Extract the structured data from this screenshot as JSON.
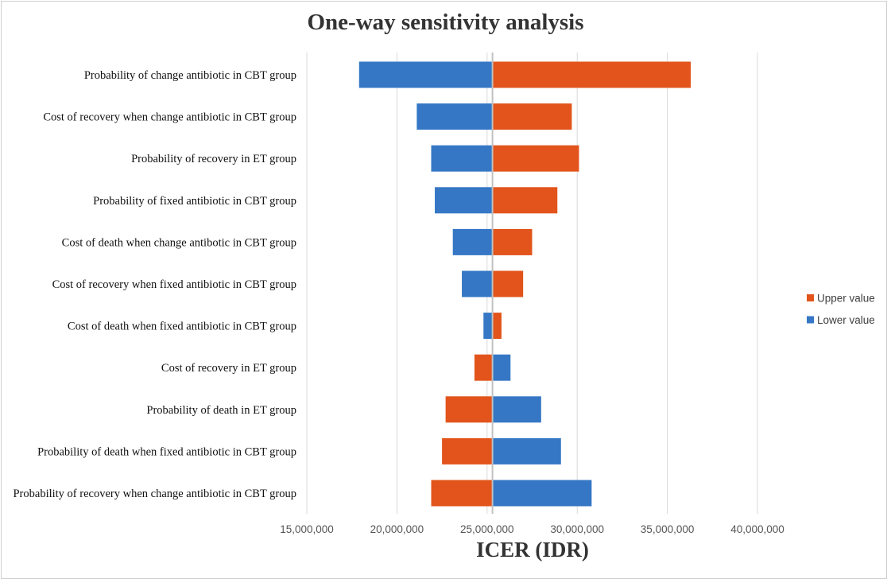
{
  "chart_data": {
    "type": "bar",
    "orientation": "horizontal",
    "subtype": "tornado",
    "title": "One-way sensitivity analysis",
    "xlabel": "ICER (IDR)",
    "ylabel": "",
    "base_value": 25300000,
    "xlim": [
      15000000,
      40000000
    ],
    "xticks": [
      15000000,
      20000000,
      25000000,
      30000000,
      35000000,
      40000000
    ],
    "xtick_labels": [
      "15,000,000",
      "20,000,000",
      "25,000,000",
      "30,000,000",
      "35,000,000",
      "40,000,000"
    ],
    "grid": true,
    "legend_position": "right",
    "categories": [
      "Probability of change antibiotic in CBT group",
      "Cost of recovery when change antibiotic in CBT group",
      "Probability of recovery in ET group",
      "Probability of fixed antibiotic in CBT group",
      "Cost of death when change antibotic in CBT group",
      "Cost of recovery when fixed antibiotic in CBT group",
      "Cost of death when fixed antibiotic in CBT group",
      "Cost of recovery in ET group",
      "Probability of death in ET group",
      "Probability of death when fixed antibiotic in CBT group",
      "Probability of recovery when change antibiotic in CBT group"
    ],
    "series": [
      {
        "name": "Upper value",
        "color": "#E2541B",
        "values": [
          36300000,
          29700000,
          30100000,
          28900000,
          27500000,
          27000000,
          25800000,
          24300000,
          22700000,
          22500000,
          21900000
        ]
      },
      {
        "name": "Lower value",
        "color": "#3577C5",
        "values": [
          17900000,
          21100000,
          21900000,
          22100000,
          23100000,
          23600000,
          24800000,
          26300000,
          28000000,
          29100000,
          30800000
        ]
      }
    ]
  }
}
